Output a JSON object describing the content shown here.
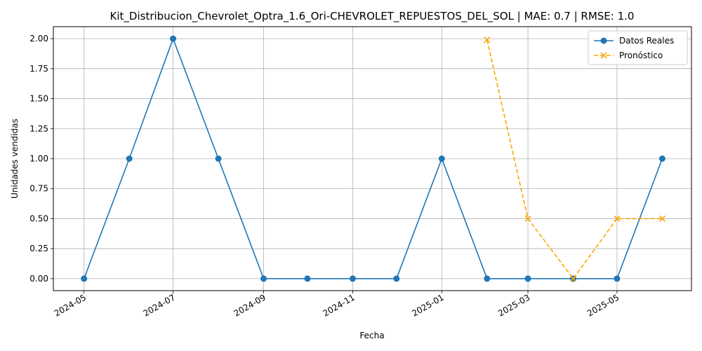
{
  "chart_data": {
    "type": "line",
    "title": "Kit_Distribucion_Chevrolet_Optra_1.6_Ori-CHEVROLET_REPUESTOS_DEL_SOL | MAE: 0.7 | RMSE: 1.0",
    "xlabel": "Fecha",
    "ylabel": "Unidades vendidas",
    "ylim": [
      -0.1,
      2.1
    ],
    "xlim": [
      "2024-04-10",
      "2025-06-21"
    ],
    "yticks": [
      0.0,
      0.25,
      0.5,
      0.75,
      1.0,
      1.25,
      1.5,
      1.75,
      2.0
    ],
    "ytick_labels": [
      "0.00",
      "0.25",
      "0.50",
      "0.75",
      "1.00",
      "1.25",
      "1.50",
      "1.75",
      "2.00"
    ],
    "xticks": [
      "2024-05-01",
      "2024-07-01",
      "2024-09-01",
      "2024-11-01",
      "2025-01-01",
      "2025-03-01",
      "2025-05-01"
    ],
    "xtick_labels": [
      "2024-05",
      "2024-07",
      "2024-09",
      "2024-11",
      "2025-01",
      "2025-03",
      "2025-05"
    ],
    "grid": true,
    "legend_position": "top-right",
    "series": [
      {
        "name": "Datos Reales",
        "color": "#1f77b4",
        "style": "solid",
        "marker": "circle",
        "x": [
          "2024-05-01",
          "2024-06-01",
          "2024-07-01",
          "2024-08-01",
          "2024-09-01",
          "2024-10-01",
          "2024-11-01",
          "2024-12-01",
          "2025-01-01",
          "2025-02-01",
          "2025-03-01",
          "2025-04-01",
          "2025-05-01",
          "2025-06-01"
        ],
        "y": [
          0,
          1,
          2,
          1,
          0,
          0,
          0,
          0,
          1,
          0,
          0,
          0,
          0,
          1
        ]
      },
      {
        "name": "Pronóstico",
        "color": "#ffa500",
        "style": "dashed",
        "marker": "x",
        "x": [
          "2025-02-01",
          "2025-03-01",
          "2025-04-01",
          "2025-05-01",
          "2025-06-01"
        ],
        "y": [
          1.99,
          0.5,
          0.0,
          0.5,
          0.5
        ]
      }
    ]
  }
}
